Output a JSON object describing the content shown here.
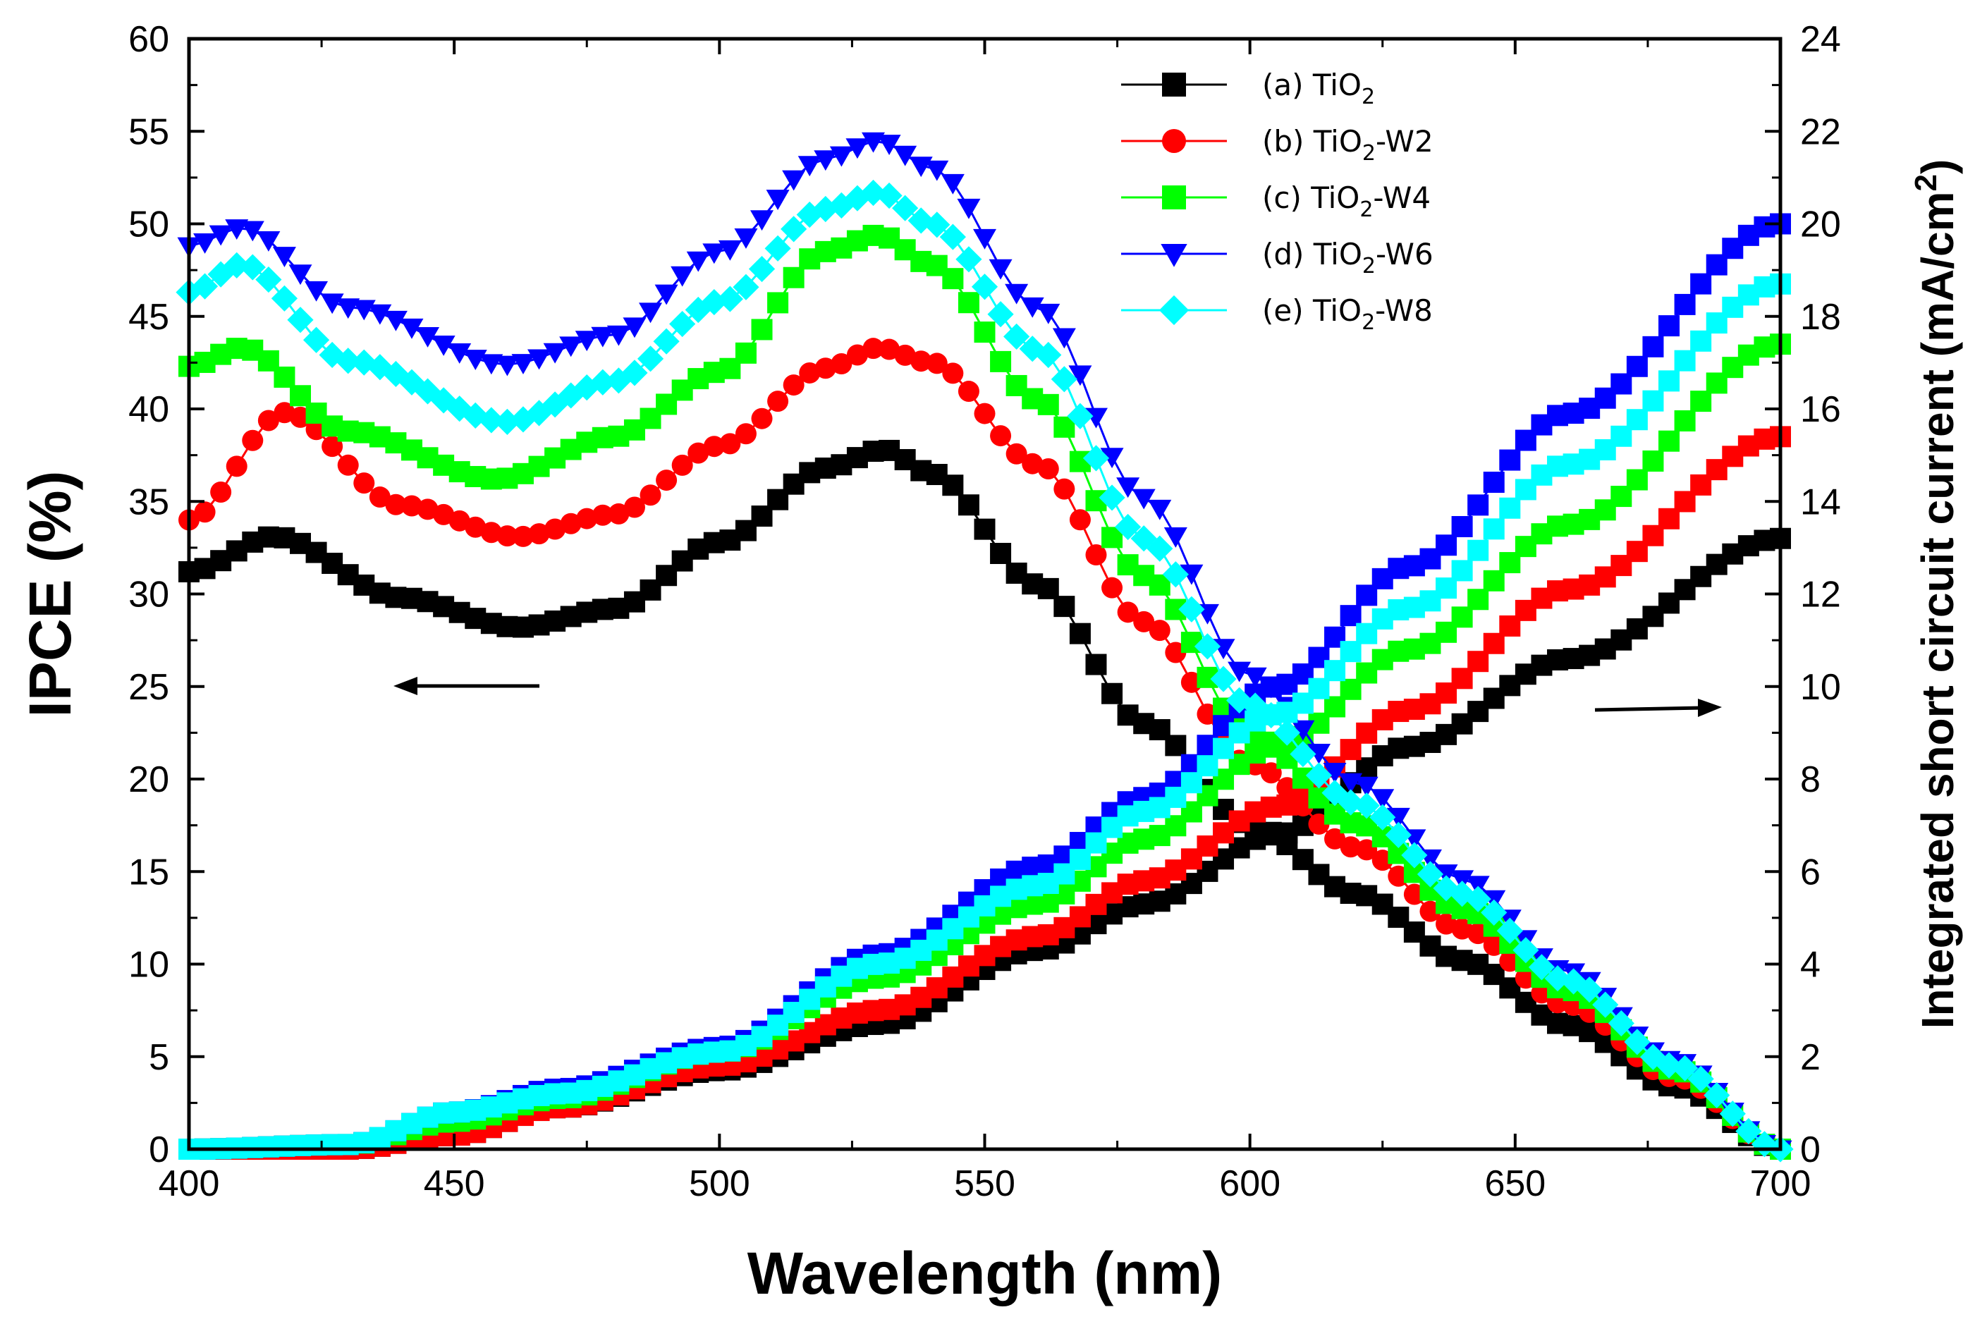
{
  "chart_data": {
    "type": "scatter",
    "xlabel": "Wavelength (nm)",
    "ylabel_left": "IPCE (%)",
    "ylabel_right_main": "Integrated short circuit current (mA/cm",
    "ylabel_right_sup": "2",
    "ylabel_right_close": ")",
    "xlim": [
      400,
      700
    ],
    "ylim_left": [
      0,
      60
    ],
    "ylim_right": [
      0,
      24
    ],
    "x_ticks": [
      400,
      450,
      500,
      550,
      600,
      650,
      700
    ],
    "y_left_ticks": [
      0,
      5,
      10,
      15,
      20,
      25,
      30,
      35,
      40,
      45,
      50,
      55,
      60
    ],
    "y_right_ticks": [
      0,
      2,
      4,
      6,
      8,
      10,
      12,
      14,
      16,
      18,
      20,
      22,
      24
    ],
    "x_tick_labels": [
      "400",
      "450",
      "500",
      "550",
      "600",
      "650",
      "700"
    ],
    "y_left_tick_labels": [
      "0",
      "5",
      "10",
      "15",
      "20",
      "25",
      "30",
      "35",
      "40",
      "45",
      "50",
      "55",
      "60"
    ],
    "y_right_tick_labels": [
      "0",
      "2",
      "4",
      "6",
      "8",
      "10",
      "12",
      "14",
      "16",
      "18",
      "20",
      "22",
      "24"
    ],
    "annotations": [
      "arrow pointing left (IPCE axis)",
      "arrow pointing right (current axis)"
    ],
    "legend": [
      {
        "prefix": "(a) TiO",
        "sub": "2",
        "suffix": ""
      },
      {
        "prefix": "(b) TiO",
        "sub": "2",
        "suffix": "-W2"
      },
      {
        "prefix": "(c) TiO",
        "sub": "2",
        "suffix": "-W4"
      },
      {
        "prefix": "(d) TiO",
        "sub": "2",
        "suffix": "-W6"
      },
      {
        "prefix": "(e) TiO",
        "sub": "2",
        "suffix": "-W8"
      }
    ],
    "series": [
      {
        "name": "(a) TiO2",
        "color": "#000000",
        "marker": "square",
        "ipce_keypoints": [
          [
            400,
            31.2
          ],
          [
            416,
            33.1
          ],
          [
            440,
            29.8
          ],
          [
            462,
            28.2
          ],
          [
            480,
            29.2
          ],
          [
            500,
            32.8
          ],
          [
            520,
            36.8
          ],
          [
            531,
            37.8
          ],
          [
            540,
            36.5
          ],
          [
            560,
            30.5
          ],
          [
            580,
            23.0
          ],
          [
            600,
            17.5
          ],
          [
            620,
            13.8
          ],
          [
            640,
            10.2
          ],
          [
            660,
            6.7
          ],
          [
            680,
            3.4
          ],
          [
            700,
            0
          ]
        ],
        "jsc_keypoints": [
          [
            400,
            0
          ],
          [
            430,
            0.0
          ],
          [
            450,
            0.3
          ],
          [
            470,
            0.9
          ],
          [
            500,
            1.7
          ],
          [
            530,
            2.7
          ],
          [
            560,
            4.3
          ],
          [
            580,
            5.3
          ],
          [
            605,
            6.8
          ],
          [
            630,
            8.7
          ],
          [
            660,
            10.6
          ],
          [
            700,
            13.2
          ]
        ]
      },
      {
        "name": "(b) TiO2-W2",
        "color": "#ff0000",
        "marker": "circle",
        "ipce_keypoints": [
          [
            400,
            34.0
          ],
          [
            418,
            39.8
          ],
          [
            440,
            34.8
          ],
          [
            462,
            33.1
          ],
          [
            480,
            34.3
          ],
          [
            500,
            38.0
          ],
          [
            520,
            42.2
          ],
          [
            530,
            43.3
          ],
          [
            540,
            42.5
          ],
          [
            560,
            37.0
          ],
          [
            580,
            28.5
          ],
          [
            600,
            20.8
          ],
          [
            620,
            16.3
          ],
          [
            640,
            11.9
          ],
          [
            660,
            7.8
          ],
          [
            680,
            3.9
          ],
          [
            700,
            0
          ]
        ],
        "jsc_keypoints": [
          [
            400,
            0
          ],
          [
            430,
            0.0
          ],
          [
            450,
            0.3
          ],
          [
            470,
            0.9
          ],
          [
            500,
            1.8
          ],
          [
            530,
            3.0
          ],
          [
            560,
            4.6
          ],
          [
            580,
            5.8
          ],
          [
            605,
            7.4
          ],
          [
            630,
            9.5
          ],
          [
            660,
            12.1
          ],
          [
            700,
            15.4
          ]
        ]
      },
      {
        "name": "(c) TiO2-W4",
        "color": "#00ff00",
        "marker": "square",
        "ipce_keypoints": [
          [
            400,
            42.3
          ],
          [
            410,
            43.3
          ],
          [
            430,
            38.8
          ],
          [
            458,
            36.2
          ],
          [
            480,
            38.5
          ],
          [
            500,
            42.0
          ],
          [
            520,
            48.5
          ],
          [
            530,
            49.4
          ],
          [
            540,
            47.8
          ],
          [
            560,
            40.5
          ],
          [
            580,
            31.0
          ],
          [
            600,
            22.5
          ],
          [
            620,
            17.6
          ],
          [
            640,
            13.0
          ],
          [
            660,
            8.6
          ],
          [
            680,
            4.3
          ],
          [
            700,
            0
          ]
        ],
        "jsc_keypoints": [
          [
            400,
            0
          ],
          [
            430,
            0.1
          ],
          [
            450,
            0.6
          ],
          [
            470,
            1.1
          ],
          [
            500,
            2.1
          ],
          [
            530,
            3.7
          ],
          [
            560,
            5.3
          ],
          [
            580,
            6.7
          ],
          [
            605,
            8.7
          ],
          [
            630,
            10.8
          ],
          [
            660,
            13.5
          ],
          [
            700,
            17.4
          ]
        ]
      },
      {
        "name": "(d) TiO2-W6",
        "color": "#0000ff",
        "marker": "triangle",
        "ipce_keypoints": [
          [
            400,
            48.8
          ],
          [
            410,
            49.8
          ],
          [
            430,
            45.5
          ],
          [
            460,
            42.4
          ],
          [
            480,
            44.0
          ],
          [
            500,
            48.5
          ],
          [
            520,
            53.5
          ],
          [
            530,
            54.5
          ],
          [
            540,
            53.0
          ],
          [
            560,
            45.5
          ],
          [
            580,
            35.2
          ],
          [
            600,
            25.6
          ],
          [
            620,
            19.8
          ],
          [
            640,
            14.6
          ],
          [
            660,
            9.6
          ],
          [
            680,
            4.8
          ],
          [
            700,
            0
          ]
        ],
        "jsc_keypoints": [
          [
            400,
            0
          ],
          [
            430,
            0.1
          ],
          [
            450,
            0.8
          ],
          [
            470,
            1.3
          ],
          [
            500,
            2.2
          ],
          [
            530,
            4.2
          ],
          [
            560,
            6.1
          ],
          [
            580,
            7.6
          ],
          [
            605,
            10.0
          ],
          [
            630,
            12.6
          ],
          [
            660,
            15.9
          ],
          [
            700,
            20.0
          ]
        ]
      },
      {
        "name": "(e) TiO2-W8",
        "color": "#00ffff",
        "marker": "diamond",
        "ipce_keypoints": [
          [
            400,
            46.3
          ],
          [
            410,
            47.8
          ],
          [
            430,
            42.6
          ],
          [
            460,
            39.3
          ],
          [
            480,
            41.5
          ],
          [
            500,
            45.8
          ],
          [
            520,
            50.8
          ],
          [
            530,
            51.7
          ],
          [
            540,
            50.0
          ],
          [
            560,
            43.2
          ],
          [
            580,
            33.0
          ],
          [
            600,
            24.0
          ],
          [
            620,
            18.7
          ],
          [
            640,
            13.8
          ],
          [
            660,
            9.1
          ],
          [
            680,
            4.5
          ],
          [
            700,
            0
          ]
        ],
        "jsc_keypoints": [
          [
            400,
            0
          ],
          [
            430,
            0.1
          ],
          [
            450,
            0.8
          ],
          [
            470,
            1.2
          ],
          [
            500,
            2.1
          ],
          [
            530,
            4.0
          ],
          [
            560,
            5.7
          ],
          [
            580,
            7.3
          ],
          [
            605,
            9.4
          ],
          [
            630,
            11.7
          ],
          [
            660,
            14.8
          ],
          [
            700,
            18.7
          ]
        ]
      }
    ]
  }
}
